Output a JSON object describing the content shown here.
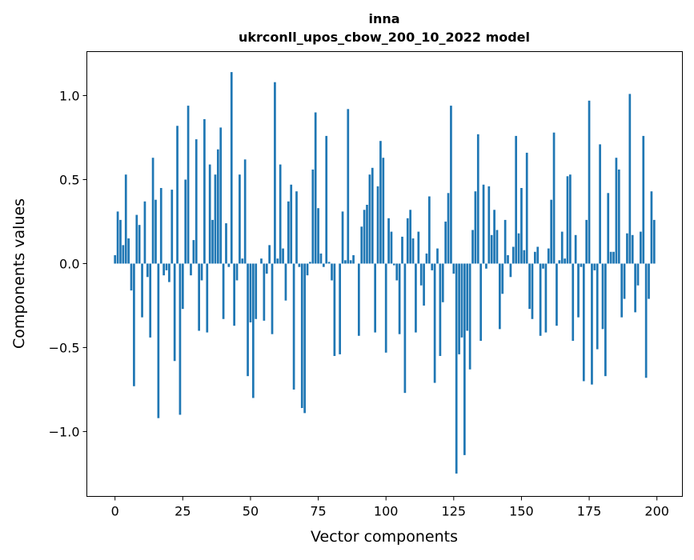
{
  "chart_data": {
    "type": "bar",
    "title": "inna",
    "subtitle": "ukrconll_upos_cbow_200_10_2022 model",
    "xlabel": "Vector components",
    "ylabel": "Components values",
    "xlim": [
      -10.4,
      209.4
    ],
    "ylim": [
      -1.386,
      1.262
    ],
    "xticks": [
      0,
      25,
      50,
      75,
      100,
      125,
      150,
      175,
      200
    ],
    "xtick_labels": [
      "0",
      "25",
      "50",
      "75",
      "100",
      "125",
      "150",
      "175",
      "200"
    ],
    "yticks": [
      -1.0,
      -0.5,
      0.0,
      0.5,
      1.0
    ],
    "ytick_labels": [
      "−1.0",
      "−0.5",
      "0.0",
      "0.5",
      "1.0"
    ],
    "grid": false,
    "bar_color": "#1f77b4",
    "values": [
      0.05,
      0.31,
      0.26,
      0.11,
      0.53,
      0.15,
      -0.16,
      -0.73,
      0.29,
      0.23,
      -0.32,
      0.37,
      -0.08,
      -0.44,
      0.63,
      0.38,
      -0.92,
      0.45,
      -0.07,
      -0.04,
      -0.11,
      0.44,
      -0.58,
      0.82,
      -0.9,
      -0.27,
      0.5,
      0.94,
      -0.07,
      0.14,
      0.74,
      -0.4,
      -0.1,
      0.86,
      -0.41,
      0.59,
      0.26,
      0.53,
      0.68,
      0.81,
      -0.33,
      0.24,
      -0.02,
      1.14,
      -0.37,
      -0.1,
      0.53,
      0.03,
      0.62,
      -0.67,
      -0.35,
      -0.8,
      -0.33,
      0.0,
      0.03,
      -0.34,
      -0.06,
      0.11,
      -0.42,
      1.08,
      0.03,
      0.59,
      0.09,
      -0.22,
      0.37,
      0.47,
      -0.75,
      0.43,
      -0.02,
      -0.86,
      -0.89,
      -0.07,
      0.01,
      0.56,
      0.9,
      0.33,
      0.06,
      -0.02,
      0.76,
      0.01,
      -0.1,
      -0.55,
      0.0,
      -0.54,
      0.31,
      0.02,
      0.92,
      0.02,
      0.05,
      0.0,
      -0.43,
      0.22,
      0.32,
      0.35,
      0.53,
      0.57,
      -0.41,
      0.46,
      0.73,
      0.63,
      -0.53,
      0.27,
      0.19,
      -0.01,
      -0.1,
      -0.42,
      0.16,
      -0.77,
      0.27,
      0.32,
      0.15,
      -0.41,
      0.19,
      -0.13,
      -0.25,
      0.06,
      0.4,
      -0.04,
      -0.71,
      0.09,
      -0.55,
      -0.23,
      0.25,
      0.42,
      0.94,
      -0.06,
      -1.25,
      -0.54,
      -0.44,
      -1.14,
      -0.4,
      -0.63,
      0.2,
      0.43,
      0.77,
      -0.46,
      0.47,
      -0.03,
      0.46,
      0.17,
      0.32,
      0.2,
      -0.39,
      -0.18,
      0.26,
      0.05,
      -0.08,
      0.1,
      0.76,
      0.18,
      0.45,
      0.08,
      0.66,
      -0.27,
      -0.33,
      0.07,
      0.1,
      -0.43,
      -0.03,
      -0.41,
      0.09,
      0.38,
      0.78,
      -0.37,
      0.02,
      0.19,
      0.03,
      0.52,
      0.53,
      -0.46,
      0.17,
      -0.32,
      -0.02,
      -0.7,
      0.26,
      0.97,
      -0.72,
      -0.04,
      -0.51,
      0.71,
      -0.39,
      -0.67,
      0.42,
      0.07,
      0.07,
      0.63,
      0.56,
      -0.32,
      -0.21,
      0.18,
      1.01,
      0.17,
      -0.29,
      -0.13,
      0.19,
      0.76,
      -0.68,
      -0.21,
      0.43,
      0.26
    ]
  }
}
